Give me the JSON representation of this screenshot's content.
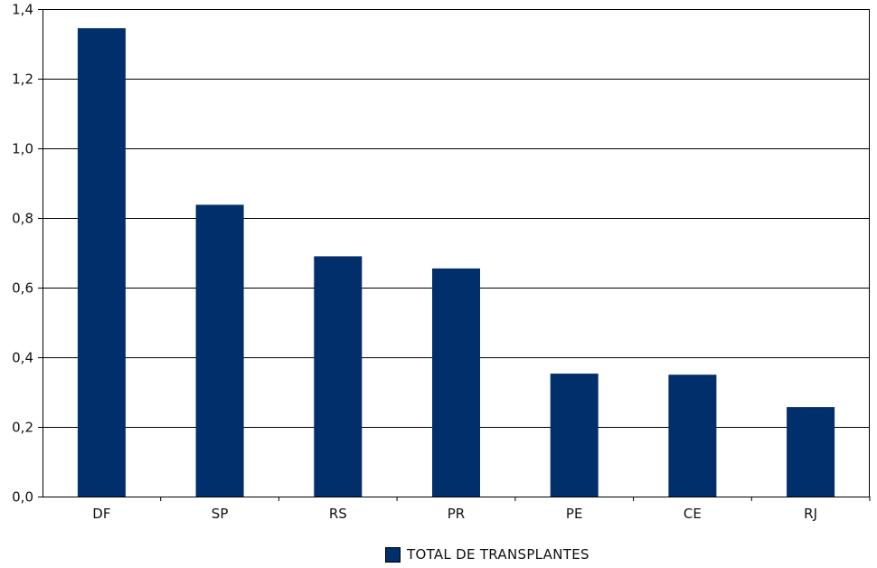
{
  "chart_data": {
    "type": "bar",
    "categories": [
      "DF",
      "SP",
      "RS",
      "PR",
      "PE",
      "CE",
      "RJ"
    ],
    "series": [
      {
        "name": "TOTAL DE TRANSPLANTES",
        "values": [
          1.345,
          0.838,
          0.69,
          0.655,
          0.353,
          0.35,
          0.257
        ]
      }
    ],
    "ylim": [
      0,
      1.4
    ],
    "yticks": [
      "0,0",
      "0,2",
      "0,4",
      "0,6",
      "0,8",
      "1,0",
      "1,2",
      "1,4"
    ],
    "ytick_values": [
      0,
      0.2,
      0.4,
      0.6,
      0.8,
      1.0,
      1.2,
      1.4
    ],
    "grid": true,
    "legend_position": "bottom",
    "colors": {
      "bar": "#002F6B",
      "grid": "#000000"
    },
    "title": "",
    "xlabel": "",
    "ylabel": ""
  }
}
